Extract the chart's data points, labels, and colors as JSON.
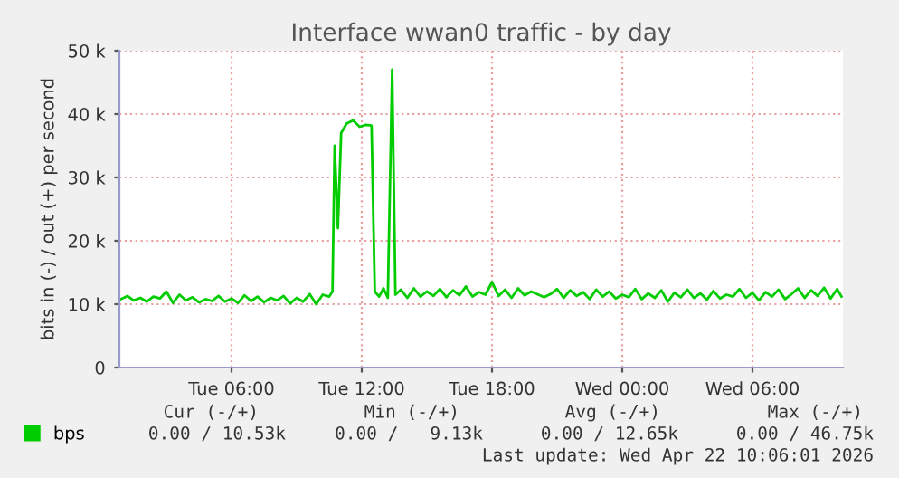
{
  "chart_data": {
    "type": "line",
    "title": "Interface wwan0 traffic - by day",
    "ylabel": "bits in (-) / out (+) per second",
    "x": [
      "2026-04-21T00:54",
      "2026-04-21T01:12",
      "2026-04-21T01:30",
      "2026-04-21T01:48",
      "2026-04-21T02:06",
      "2026-04-21T02:24",
      "2026-04-21T02:42",
      "2026-04-21T03:00",
      "2026-04-21T03:18",
      "2026-04-21T03:36",
      "2026-04-21T03:54",
      "2026-04-21T04:12",
      "2026-04-21T04:30",
      "2026-04-21T04:48",
      "2026-04-21T05:06",
      "2026-04-21T05:24",
      "2026-04-21T05:42",
      "2026-04-21T06:00",
      "2026-04-21T06:18",
      "2026-04-21T06:36",
      "2026-04-21T06:54",
      "2026-04-21T07:12",
      "2026-04-21T07:30",
      "2026-04-21T07:48",
      "2026-04-21T08:06",
      "2026-04-21T08:24",
      "2026-04-21T08:42",
      "2026-04-21T09:00",
      "2026-04-21T09:18",
      "2026-04-21T09:36",
      "2026-04-21T09:54",
      "2026-04-21T10:12",
      "2026-04-21T10:30",
      "2026-04-21T10:39",
      "2026-04-21T10:45",
      "2026-04-21T10:54",
      "2026-04-21T11:03",
      "2026-04-21T11:18",
      "2026-04-21T11:36",
      "2026-04-21T11:54",
      "2026-04-21T12:12",
      "2026-04-21T12:27",
      "2026-04-21T12:36",
      "2026-04-21T12:48",
      "2026-04-21T13:00",
      "2026-04-21T13:12",
      "2026-04-21T13:24",
      "2026-04-21T13:33",
      "2026-04-21T13:48",
      "2026-04-21T14:06",
      "2026-04-21T14:24",
      "2026-04-21T14:42",
      "2026-04-21T15:00",
      "2026-04-21T15:18",
      "2026-04-21T15:36",
      "2026-04-21T15:54",
      "2026-04-21T16:12",
      "2026-04-21T16:30",
      "2026-04-21T16:48",
      "2026-04-21T17:06",
      "2026-04-21T17:24",
      "2026-04-21T17:42",
      "2026-04-21T18:00",
      "2026-04-21T18:18",
      "2026-04-21T18:36",
      "2026-04-21T18:54",
      "2026-04-21T19:12",
      "2026-04-21T19:30",
      "2026-04-21T19:48",
      "2026-04-21T20:24",
      "2026-04-21T20:42",
      "2026-04-21T21:00",
      "2026-04-21T21:18",
      "2026-04-21T21:36",
      "2026-04-21T21:54",
      "2026-04-21T22:12",
      "2026-04-21T22:30",
      "2026-04-21T22:48",
      "2026-04-21T23:06",
      "2026-04-21T23:24",
      "2026-04-21T23:42",
      "2026-04-22T00:00",
      "2026-04-22T00:18",
      "2026-04-22T00:36",
      "2026-04-22T00:54",
      "2026-04-22T01:12",
      "2026-04-22T01:30",
      "2026-04-22T01:48",
      "2026-04-22T02:06",
      "2026-04-22T02:24",
      "2026-04-22T02:42",
      "2026-04-22T03:00",
      "2026-04-22T03:18",
      "2026-04-22T03:36",
      "2026-04-22T03:54",
      "2026-04-22T04:12",
      "2026-04-22T04:30",
      "2026-04-22T04:48",
      "2026-04-22T05:06",
      "2026-04-22T05:24",
      "2026-04-22T05:42",
      "2026-04-22T06:00",
      "2026-04-22T06:18",
      "2026-04-22T06:36",
      "2026-04-22T06:54",
      "2026-04-22T07:12",
      "2026-04-22T07:30",
      "2026-04-22T07:48",
      "2026-04-22T08:06",
      "2026-04-22T08:24",
      "2026-04-22T08:42",
      "2026-04-22T09:00",
      "2026-04-22T09:18",
      "2026-04-22T09:36",
      "2026-04-22T09:54",
      "2026-04-22T10:06"
    ],
    "series": [
      {
        "name": "bps",
        "color": "#00cc00",
        "values": [
          10800,
          11300,
          10600,
          11000,
          10400,
          11200,
          10900,
          12000,
          10200,
          11500,
          10600,
          11100,
          10300,
          10800,
          10500,
          11300,
          10400,
          10900,
          10200,
          11400,
          10500,
          11200,
          10300,
          11000,
          10600,
          11300,
          10100,
          11000,
          10400,
          11600,
          10000,
          11500,
          11200,
          12000,
          35000,
          22000,
          37000,
          38500,
          39000,
          38000,
          38300,
          38200,
          12000,
          11200,
          12500,
          11000,
          47000,
          11500,
          12300,
          11000,
          12500,
          11200,
          12000,
          11300,
          12400,
          11100,
          12200,
          11400,
          12800,
          11200,
          11900,
          11500,
          13500,
          11300,
          12300,
          11000,
          12500,
          11400,
          12000,
          11100,
          11600,
          12400,
          11000,
          12200,
          11300,
          11900,
          10800,
          12300,
          11200,
          12000,
          10900,
          11500,
          11100,
          12400,
          10800,
          11700,
          11000,
          12200,
          10400,
          11800,
          11100,
          12300,
          11000,
          11700,
          10700,
          12100,
          10900,
          11500,
          11200,
          12400,
          11000,
          11800,
          10600,
          11900,
          11200,
          12300,
          10800,
          11600,
          12500,
          11000,
          12200,
          11300,
          12600,
          10900,
          12400,
          11200
        ]
      }
    ],
    "xlim": [
      "2026-04-21T00:50",
      "2026-04-22T10:10"
    ],
    "xticks": [
      {
        "value": "2026-04-21T06:00",
        "label": "Tue 06:00"
      },
      {
        "value": "2026-04-21T12:00",
        "label": "Tue 12:00"
      },
      {
        "value": "2026-04-21T18:00",
        "label": "Tue 18:00"
      },
      {
        "value": "2026-04-22T00:00",
        "label": "Wed 00:00"
      },
      {
        "value": "2026-04-22T06:00",
        "label": "Wed 06:00"
      }
    ],
    "ylim": [
      0,
      50000
    ],
    "yticks": [
      0,
      {
        "value": 10000,
        "label": "10 k"
      },
      {
        "value": 20000,
        "label": "20 k"
      },
      {
        "value": 30000,
        "label": "30 k"
      },
      {
        "value": 40000,
        "label": "40 k"
      },
      {
        "value": 50000,
        "label": "50 k"
      }
    ],
    "grid": true,
    "legend": "bottom left",
    "marker": "none",
    "line_style": "solid",
    "annotations": [
      "Cur (-/+)",
      "Min (-/+)",
      "Avg (-/+)",
      "Max (-/+)",
      "0.00 / 10.53k",
      "0.00 /   9.13k",
      "0.00 / 12.65k",
      "0.00 / 46.75k",
      "Last update: Wed Apr 22 10:06:01 2026"
    ]
  }
}
